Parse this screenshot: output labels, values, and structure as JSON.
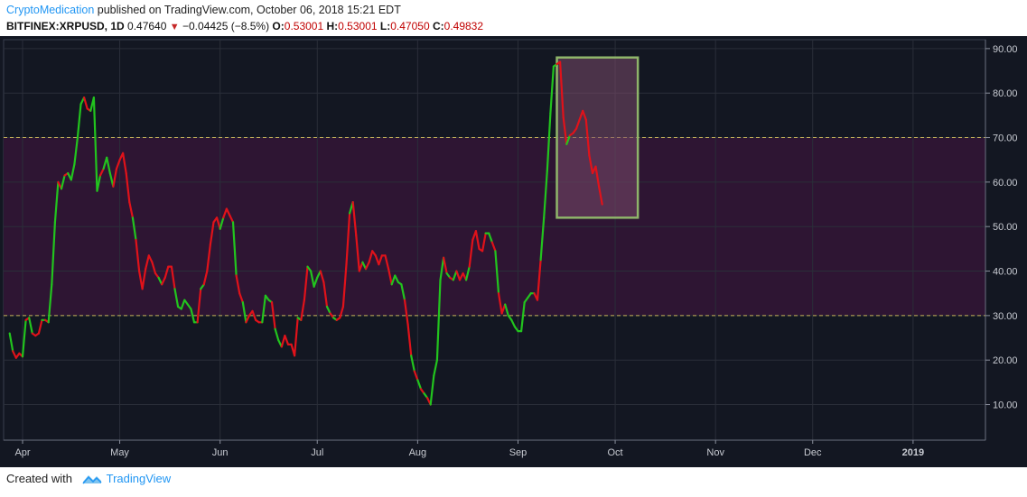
{
  "header": {
    "author": "CryptoMedication",
    "published_text": " published on TradingView.com, October 06, 2018 15:21 EDT",
    "symbol": "BITFINEX:XRPUSD, 1D",
    "last": "0.47640",
    "change": "−0.04425 (−8.5%)",
    "o_label": "O:",
    "o_value": "0.53001",
    "h_label": "H:",
    "h_value": "0.53001",
    "l_label": "L:",
    "l_value": "0.47050",
    "c_label": "C:",
    "c_value": "0.49832"
  },
  "footer": {
    "created_with": "Created with",
    "brand": "TradingView"
  },
  "colors": {
    "background": "#131722",
    "grid": "#2a2e39",
    "band_fill": "#2e1533",
    "band_line": "#c8b45a",
    "up": "#22c41e",
    "down": "#e0121a",
    "box_fill": "#7a4a6a",
    "box_stroke": "#8fb56a"
  },
  "chart_data": {
    "type": "line",
    "title": "",
    "xlabel": "",
    "ylabel": "",
    "ylim": [
      2,
      92
    ],
    "y_ticks": [
      "10.00",
      "20.00",
      "30.00",
      "40.00",
      "50.00",
      "60.00",
      "70.00",
      "80.00",
      "90.00"
    ],
    "x_ticks": [
      {
        "label": "Apr",
        "day": 0
      },
      {
        "label": "May",
        "day": 30
      },
      {
        "label": "Jun",
        "day": 61
      },
      {
        "label": "Jul",
        "day": 91
      },
      {
        "label": "Aug",
        "day": 122
      },
      {
        "label": "Sep",
        "day": 153
      },
      {
        "label": "Oct",
        "day": 183
      },
      {
        "label": "Nov",
        "day": 214
      },
      {
        "label": "Dec",
        "day": 244
      },
      {
        "label": "2019",
        "day": 275,
        "bold": true
      }
    ],
    "x_unit": "days since Apr 1, 2018",
    "bands": {
      "lower": 30,
      "upper": 70
    },
    "highlight_box": {
      "x0": 165,
      "x1": 190,
      "y0": 52,
      "y1": 88
    },
    "rsi": [
      [
        -4,
        26
      ],
      [
        -3,
        22
      ],
      [
        -2,
        20.5
      ],
      [
        -1,
        21.5
      ],
      [
        0,
        20.8
      ],
      [
        1,
        29
      ],
      [
        2,
        29.5
      ],
      [
        3,
        26
      ],
      [
        4,
        25.5
      ],
      [
        5,
        26
      ],
      [
        6,
        29
      ],
      [
        7,
        29
      ],
      [
        8,
        28.5
      ],
      [
        9,
        37
      ],
      [
        10,
        51
      ],
      [
        11,
        60
      ],
      [
        12,
        58.5
      ],
      [
        13,
        61.5
      ],
      [
        14,
        62
      ],
      [
        15,
        60.5
      ],
      [
        16,
        64
      ],
      [
        17,
        70
      ],
      [
        18,
        77.5
      ],
      [
        19,
        79
      ],
      [
        20,
        76.5
      ],
      [
        21,
        76
      ],
      [
        22,
        79
      ],
      [
        23,
        58
      ],
      [
        24,
        61.5
      ],
      [
        25,
        63
      ],
      [
        26,
        65.5
      ],
      [
        27,
        62
      ],
      [
        28,
        59
      ],
      [
        29,
        63
      ],
      [
        30,
        65
      ],
      [
        31,
        66.5
      ],
      [
        32,
        62
      ],
      [
        33,
        55.5
      ],
      [
        34,
        52
      ],
      [
        35,
        47
      ],
      [
        36,
        40
      ],
      [
        37,
        36
      ],
      [
        38,
        40.5
      ],
      [
        39,
        43.5
      ],
      [
        40,
        42
      ],
      [
        41,
        39.5
      ],
      [
        42,
        38.5
      ],
      [
        43,
        37
      ],
      [
        44,
        38.5
      ],
      [
        45,
        41
      ],
      [
        46,
        41
      ],
      [
        47,
        36
      ],
      [
        48,
        32
      ],
      [
        49,
        31.5
      ],
      [
        50,
        33.5
      ],
      [
        51,
        32.5
      ],
      [
        52,
        31.5
      ],
      [
        53,
        28.5
      ],
      [
        54,
        28.5
      ],
      [
        55,
        36
      ],
      [
        56,
        37
      ],
      [
        57,
        40
      ],
      [
        58,
        46
      ],
      [
        59,
        51
      ],
      [
        60,
        52
      ],
      [
        61,
        49.5
      ],
      [
        62,
        52
      ],
      [
        63,
        54
      ],
      [
        64,
        52.5
      ],
      [
        65,
        51
      ],
      [
        66,
        39
      ],
      [
        67,
        35
      ],
      [
        68,
        33
      ],
      [
        69,
        28.5
      ],
      [
        70,
        30
      ],
      [
        71,
        31
      ],
      [
        72,
        29
      ],
      [
        73,
        28.5
      ],
      [
        74,
        28.5
      ],
      [
        75,
        34.5
      ],
      [
        76,
        33.5
      ],
      [
        77,
        33
      ],
      [
        78,
        27
      ],
      [
        79,
        24.5
      ],
      [
        80,
        23
      ],
      [
        81,
        25.5
      ],
      [
        82,
        23.5
      ],
      [
        83,
        23.5
      ],
      [
        84,
        21
      ],
      [
        85,
        29.5
      ],
      [
        86,
        29
      ],
      [
        87,
        33.5
      ],
      [
        88,
        41
      ],
      [
        89,
        40
      ],
      [
        90,
        36.5
      ],
      [
        91,
        38.5
      ],
      [
        92,
        40
      ],
      [
        93,
        37.5
      ],
      [
        94,
        32
      ],
      [
        95,
        30.5
      ],
      [
        96,
        29.5
      ],
      [
        97,
        29
      ],
      [
        98,
        29.5
      ],
      [
        99,
        32
      ],
      [
        100,
        41.5
      ],
      [
        101,
        53
      ],
      [
        102,
        55.5
      ],
      [
        103,
        48
      ],
      [
        104,
        40
      ],
      [
        105,
        42
      ],
      [
        106,
        40.5
      ],
      [
        107,
        42
      ],
      [
        108,
        44.5
      ],
      [
        109,
        43.5
      ],
      [
        110,
        41.5
      ],
      [
        111,
        43.5
      ],
      [
        112,
        43.5
      ],
      [
        113,
        40.5
      ],
      [
        114,
        37
      ],
      [
        115,
        39
      ],
      [
        116,
        37.5
      ],
      [
        117,
        37
      ],
      [
        118,
        33.5
      ],
      [
        119,
        28
      ],
      [
        120,
        21
      ],
      [
        121,
        17.5
      ],
      [
        122,
        15.5
      ],
      [
        123,
        13.5
      ],
      [
        124,
        12.5
      ],
      [
        125,
        11.5
      ],
      [
        126,
        10
      ],
      [
        127,
        16.5
      ],
      [
        128,
        20
      ],
      [
        129,
        38
      ],
      [
        130,
        43
      ],
      [
        131,
        39.5
      ],
      [
        132,
        38.5
      ],
      [
        133,
        38
      ],
      [
        134,
        40
      ],
      [
        135,
        38
      ],
      [
        136,
        39.5
      ],
      [
        137,
        38
      ],
      [
        138,
        41
      ],
      [
        139,
        47
      ],
      [
        140,
        49
      ],
      [
        141,
        45
      ],
      [
        142,
        44.5
      ],
      [
        143,
        48.5
      ],
      [
        144,
        48.5
      ],
      [
        145,
        46.5
      ],
      [
        146,
        44.5
      ],
      [
        147,
        35
      ],
      [
        148,
        30.5
      ],
      [
        149,
        32.5
      ],
      [
        150,
        30
      ],
      [
        151,
        29
      ],
      [
        152,
        27.5
      ],
      [
        153,
        26.5
      ],
      [
        154,
        26.5
      ],
      [
        155,
        33
      ],
      [
        156,
        34
      ],
      [
        157,
        35
      ],
      [
        158,
        35
      ],
      [
        159,
        33.5
      ],
      [
        160,
        42.5
      ],
      [
        161,
        52
      ],
      [
        162,
        62.5
      ],
      [
        163,
        75.5
      ],
      [
        164,
        86
      ],
      [
        165,
        86.5
      ],
      [
        166,
        87
      ],
      [
        167,
        74.5
      ],
      [
        168,
        68.5
      ],
      [
        169,
        70.5
      ],
      [
        170,
        71
      ],
      [
        171,
        72
      ],
      [
        172,
        74
      ],
      [
        173,
        76
      ],
      [
        174,
        74
      ],
      [
        175,
        66
      ],
      [
        176,
        62
      ],
      [
        177,
        63.5
      ],
      [
        178,
        59
      ],
      [
        179,
        55
      ]
    ],
    "directions": "udddududdduduuududuuuuudduuuduuuddddddudddddddudddduuuuuuududddddudddudduddddduuuduudddddudduuuuddududdddudddudddddddduuuuddudududuuuudududdduddddduududduuuuuuuuudduuuuudddudd"
  }
}
